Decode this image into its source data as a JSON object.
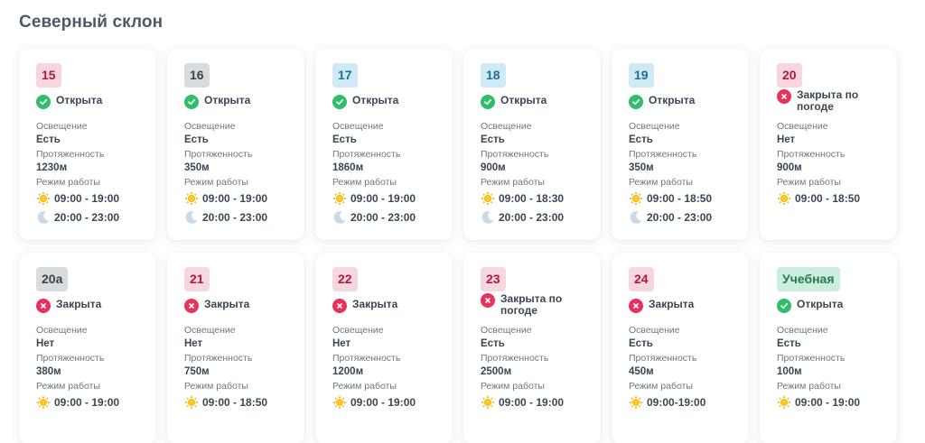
{
  "page": {
    "title": "Северный склон"
  },
  "labels": {
    "lighting": "Освещение",
    "length": "Протяженность",
    "hours": "Режим работы"
  },
  "colors": {
    "open": "#2fbf6b",
    "closed": "#e8325a",
    "sun": "#f5b301",
    "moon": "#c9d9e6"
  },
  "trails": [
    {
      "number": "15",
      "badge_color": "red",
      "status": "Открыта",
      "state": "open",
      "lighting": "Есть",
      "length": "1230м",
      "day_hours": "09:00 - 19:00",
      "night_hours": "20:00 - 23:00"
    },
    {
      "number": "16",
      "badge_color": "grey",
      "status": "Открыта",
      "state": "open",
      "lighting": "Есть",
      "length": "350м",
      "day_hours": "09:00 - 19:00",
      "night_hours": "20:00 - 23:00"
    },
    {
      "number": "17",
      "badge_color": "blue",
      "status": "Открыта",
      "state": "open",
      "lighting": "Есть",
      "length": "1860м",
      "day_hours": "09:00 - 19:00",
      "night_hours": "20:00 - 23:00"
    },
    {
      "number": "18",
      "badge_color": "blue",
      "status": "Открыта",
      "state": "open",
      "lighting": "Есть",
      "length": "900м",
      "day_hours": "09:00 - 18:30",
      "night_hours": "20:00 - 23:00"
    },
    {
      "number": "19",
      "badge_color": "blue",
      "status": "Открыта",
      "state": "open",
      "lighting": "Есть",
      "length": "350м",
      "day_hours": "09:00 - 18:50",
      "night_hours": "20:00 - 23:00"
    },
    {
      "number": "20",
      "badge_color": "red",
      "status": "Закрыта по погоде",
      "state": "closed",
      "lighting": "Нет",
      "length": "900м",
      "day_hours": "09:00 - 18:50"
    },
    {
      "number": "20а",
      "badge_color": "grey",
      "status": "Закрыта",
      "state": "closed",
      "lighting": "Нет",
      "length": "380м",
      "day_hours": "09:00 - 19:00"
    },
    {
      "number": "21",
      "badge_color": "red",
      "status": "Закрыта",
      "state": "closed",
      "lighting": "Нет",
      "length": "750м",
      "day_hours": "09:00 - 18:50"
    },
    {
      "number": "22",
      "badge_color": "red",
      "status": "Закрыта",
      "state": "closed",
      "lighting": "Нет",
      "length": "1200м",
      "day_hours": "09:00 - 19:00"
    },
    {
      "number": "23",
      "badge_color": "red",
      "status": "Закрыта по погоде",
      "state": "closed",
      "lighting": "Есть",
      "length": "2500м",
      "day_hours": "09:00 - 19:00"
    },
    {
      "number": "24",
      "badge_color": "red",
      "status": "Закрыта",
      "state": "closed",
      "lighting": "Есть",
      "length": "450м",
      "day_hours": "09:00-19:00"
    },
    {
      "number": "Учебная",
      "badge_color": "green",
      "status": "Открыта",
      "state": "open",
      "lighting": "Есть",
      "length": "100м",
      "day_hours": "09:00 - 19:00"
    }
  ]
}
